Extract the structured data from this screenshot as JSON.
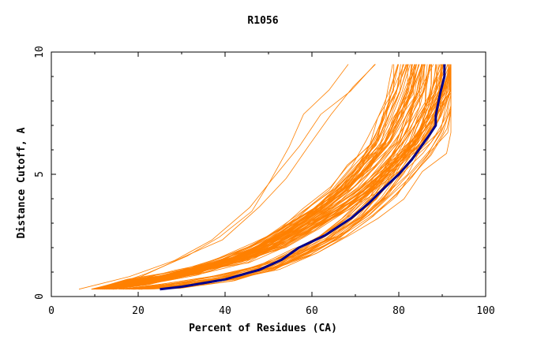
{
  "chart_data": {
    "type": "line",
    "title": "R1056",
    "xlabel": "Percent of Residues (CA)",
    "ylabel": "Distance Cutoff, A",
    "xlim": [
      0,
      100
    ],
    "ylim": [
      0,
      10
    ],
    "xticks": [
      0,
      20,
      40,
      60,
      80,
      100
    ],
    "xtick_labels": [
      "0",
      "20",
      "40",
      "60",
      "80",
      "100"
    ],
    "yticks": [
      0,
      5,
      10
    ],
    "ytick_labels": [
      "0",
      "5",
      "10"
    ],
    "grid": false,
    "colors": {
      "models": "#ff8000",
      "highlight": "#00008b",
      "axis": "#000000"
    },
    "highlight_series": {
      "name": "best model",
      "x": [
        25,
        30,
        40,
        48,
        53,
        57,
        63,
        69,
        73,
        77,
        80,
        83,
        85,
        87,
        88.5,
        88.5,
        89.5,
        90.5,
        90.5
      ],
      "y": [
        0.3,
        0.4,
        0.7,
        1.1,
        1.5,
        2.0,
        2.5,
        3.2,
        3.8,
        4.5,
        5.0,
        5.6,
        6.1,
        6.6,
        7.0,
        7.4,
        8.3,
        9.0,
        9.5
      ]
    },
    "series_families": [
      {
        "name": "early outlier models",
        "count": 3,
        "x": [
          9,
          20,
          30,
          38,
          46,
          51,
          56,
          61,
          66,
          71
        ],
        "y": [
          0.3,
          0.9,
          1.6,
          2.4,
          3.6,
          4.8,
          6.2,
          7.4,
          8.5,
          9.5
        ]
      },
      {
        "name": "typical models",
        "count": 70,
        "x": [
          12,
          20,
          32,
          42,
          50,
          57,
          64,
          70,
          75,
          80,
          83,
          86,
          88
        ],
        "y": [
          0.3,
          0.6,
          1.0,
          1.5,
          2.1,
          2.8,
          3.6,
          4.4,
          5.3,
          6.3,
          7.3,
          8.4,
          9.5
        ]
      },
      {
        "name": "best-cluster models",
        "count": 25,
        "x": [
          18,
          28,
          40,
          50,
          58,
          65,
          71,
          76,
          80,
          84,
          87,
          89,
          90.5,
          91
        ],
        "y": [
          0.3,
          0.45,
          0.75,
          1.2,
          1.8,
          2.5,
          3.3,
          4.1,
          5.0,
          5.9,
          6.8,
          7.7,
          8.6,
          9.5
        ]
      }
    ]
  }
}
